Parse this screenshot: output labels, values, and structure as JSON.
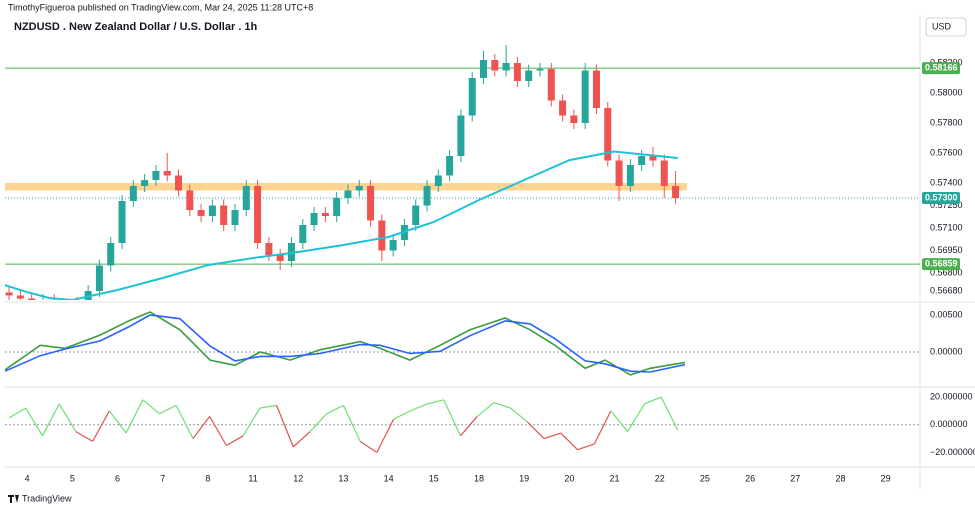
{
  "header": {
    "publisher": "TimothyFigueroa published on TradingView.com, Mar 24, 2025 11:28 UTC+8",
    "currency": "USD",
    "brand": "TradingView"
  },
  "chart_data": [
    {
      "type": "candlestick",
      "title": "NZDUSD . New Zealand Dollar / U.S. Dollar . 1h",
      "up_color": "#26a69a",
      "down_color": "#ef5350",
      "xlim": [
        -0.49,
        19.76
      ],
      "xticks": [
        {
          "value": 0,
          "label": "4"
        },
        {
          "value": 1,
          "label": "5"
        },
        {
          "value": 2,
          "label": "6"
        },
        {
          "value": 3,
          "label": "7"
        },
        {
          "value": 4,
          "label": "8"
        },
        {
          "value": 5,
          "label": "11"
        },
        {
          "value": 6,
          "label": "12"
        },
        {
          "value": 7,
          "label": "13"
        },
        {
          "value": 8,
          "label": "14"
        },
        {
          "value": 9,
          "label": "15"
        },
        {
          "value": 10,
          "label": "18"
        },
        {
          "value": 11,
          "label": "19"
        },
        {
          "value": 12,
          "label": "20"
        },
        {
          "value": 13,
          "label": "21"
        },
        {
          "value": 14,
          "label": "22"
        },
        {
          "value": 15,
          "label": "25"
        },
        {
          "value": 16,
          "label": "26"
        },
        {
          "value": 17,
          "label": "27"
        },
        {
          "value": 18,
          "label": "28"
        },
        {
          "value": 19,
          "label": "29"
        }
      ],
      "ylim": [
        0.5662,
        0.5852
      ],
      "yticks": [
        {
          "value": 0.582,
          "label": "0.58200"
        },
        {
          "value": 0.58,
          "label": "0.58000"
        },
        {
          "value": 0.578,
          "label": "0.57800"
        },
        {
          "value": 0.576,
          "label": "0.57600"
        },
        {
          "value": 0.574,
          "label": "0.57400"
        },
        {
          "value": 0.5725,
          "label": "0.57250"
        },
        {
          "value": 0.571,
          "label": "0.57100"
        },
        {
          "value": 0.5695,
          "label": "0.56950"
        },
        {
          "value": 0.568,
          "label": "0.56800"
        },
        {
          "value": 0.5668,
          "label": "0.56680"
        }
      ],
      "candles": {
        "x": [
          -0.4,
          -0.15,
          0.1,
          0.35,
          0.6,
          0.85,
          1.1,
          1.35,
          1.6,
          1.85,
          2.1,
          2.35,
          2.6,
          2.85,
          3.1,
          3.35,
          3.6,
          3.85,
          4.1,
          4.35,
          4.6,
          4.85,
          5.1,
          5.35,
          5.6,
          5.85,
          6.1,
          6.35,
          6.6,
          6.85,
          7.1,
          7.35,
          7.6,
          7.85,
          8.1,
          8.35,
          8.6,
          8.85,
          9.1,
          9.35,
          9.6,
          9.85,
          10.1,
          10.35,
          10.6,
          10.85,
          11.1,
          11.35,
          11.6,
          11.85,
          12.1,
          12.35,
          12.6,
          12.85,
          13.1,
          13.35,
          13.6,
          13.85,
          14.1,
          14.35
        ],
        "open": [
          0.5667,
          0.5665,
          0.5663,
          0.566,
          0.5662,
          0.5658,
          0.5655,
          0.566,
          0.5668,
          0.5685,
          0.57,
          0.5728,
          0.5738,
          0.5742,
          0.5748,
          0.5745,
          0.5735,
          0.5722,
          0.5718,
          0.5725,
          0.5712,
          0.5722,
          0.5738,
          0.57,
          0.5692,
          0.5688,
          0.57,
          0.5712,
          0.572,
          0.5718,
          0.573,
          0.5735,
          0.5738,
          0.5715,
          0.5695,
          0.5702,
          0.5712,
          0.5725,
          0.5738,
          0.5745,
          0.5758,
          0.5785,
          0.581,
          0.5822,
          0.5815,
          0.582,
          0.5808,
          0.5815,
          0.5816,
          0.5795,
          0.5785,
          0.578,
          0.5815,
          0.579,
          0.5755,
          0.5738,
          0.5752,
          0.5758,
          0.5755,
          0.5738
        ],
        "high": [
          0.5671,
          0.5669,
          0.5667,
          0.5666,
          0.5666,
          0.5662,
          0.5664,
          0.5672,
          0.5689,
          0.5704,
          0.5732,
          0.5742,
          0.5746,
          0.5752,
          0.576,
          0.5749,
          0.5739,
          0.5726,
          0.5729,
          0.5729,
          0.5726,
          0.5742,
          0.5742,
          0.5704,
          0.5696,
          0.5704,
          0.5716,
          0.5724,
          0.5724,
          0.5734,
          0.5739,
          0.5742,
          0.5742,
          0.5719,
          0.5706,
          0.5716,
          0.5729,
          0.5742,
          0.5749,
          0.5762,
          0.5789,
          0.5814,
          0.5828,
          0.5826,
          0.5832,
          0.5824,
          0.5819,
          0.582,
          0.582,
          0.5799,
          0.5789,
          0.582,
          0.5819,
          0.5794,
          0.5759,
          0.5756,
          0.5762,
          0.5764,
          0.5759,
          0.5748
        ],
        "low": [
          0.5661,
          0.5659,
          0.5656,
          0.5656,
          0.5654,
          0.5651,
          0.5651,
          0.5656,
          0.5664,
          0.5681,
          0.5696,
          0.5724,
          0.5734,
          0.5738,
          0.5741,
          0.5731,
          0.5718,
          0.5714,
          0.5714,
          0.5708,
          0.5708,
          0.5718,
          0.5696,
          0.5688,
          0.5682,
          0.5684,
          0.5696,
          0.5708,
          0.5714,
          0.5714,
          0.5726,
          0.5731,
          0.5711,
          0.5688,
          0.5691,
          0.5698,
          0.5708,
          0.5721,
          0.5734,
          0.5741,
          0.5754,
          0.5781,
          0.5806,
          0.5811,
          0.5811,
          0.5804,
          0.5804,
          0.5811,
          0.5791,
          0.5781,
          0.5776,
          0.5776,
          0.5786,
          0.5751,
          0.5728,
          0.5734,
          0.5748,
          0.5751,
          0.573,
          0.5726
        ],
        "close": [
          0.5665,
          0.5663,
          0.566,
          0.5662,
          0.5658,
          0.5655,
          0.566,
          0.5668,
          0.5685,
          0.57,
          0.5728,
          0.5738,
          0.5742,
          0.5748,
          0.5745,
          0.5735,
          0.5722,
          0.5718,
          0.5725,
          0.5712,
          0.5722,
          0.5738,
          0.57,
          0.5692,
          0.5688,
          0.57,
          0.5712,
          0.572,
          0.5718,
          0.573,
          0.5735,
          0.5738,
          0.5715,
          0.5695,
          0.5702,
          0.5712,
          0.5725,
          0.5738,
          0.5745,
          0.5758,
          0.5785,
          0.581,
          0.5822,
          0.5815,
          0.582,
          0.5808,
          0.5815,
          0.5816,
          0.5795,
          0.5785,
          0.578,
          0.5815,
          0.579,
          0.5755,
          0.5738,
          0.5752,
          0.5758,
          0.5755,
          0.5738,
          0.573
        ]
      },
      "series": [
        {
          "color": "#1cc3d4",
          "x": [
            -0.5,
            0,
            0.5,
            1,
            2,
            3,
            4,
            5,
            6,
            7,
            8,
            9,
            10,
            11,
            12,
            13,
            14.4
          ],
          "values": [
            0.5672,
            0.56673,
            0.56633,
            0.5662,
            0.56687,
            0.56767,
            0.56853,
            0.569,
            0.5694,
            0.56987,
            0.5704,
            0.5714,
            0.57287,
            0.5742,
            0.57553,
            0.5761,
            0.57567
          ]
        }
      ],
      "zone": [
        0.5735,
        0.574
      ],
      "zone_color": "#ffcc80",
      "levels": [
        {
          "value": 0.58166,
          "label": "0.58166",
          "color": "#4caf50",
          "style": "solid"
        },
        {
          "value": 0.56859,
          "label": "0.56859",
          "color": "#4caf50",
          "style": "solid"
        },
        {
          "value": 0.573,
          "label": "0.57300",
          "color": "#26a69a",
          "style": "dotted"
        }
      ]
    },
    {
      "type": "line",
      "ylim": [
        -0.00446,
        0.00635
      ],
      "yticks": [
        {
          "value": 0.005,
          "label": "0.00500"
        },
        {
          "value": 0,
          "label": "0.00000"
        }
      ],
      "series": [
        {
          "color": "#3a9d3f",
          "x": [
            -0.49,
            0.29,
            0.84,
            1.62,
            2.28,
            2.72,
            3.38,
            4.05,
            4.6,
            5.16,
            5.82,
            6.48,
            7.37,
            7.81,
            8.47,
            9.14,
            9.8,
            10.58,
            11.13,
            11.68,
            12.35,
            12.79,
            13.35,
            13.79,
            14.56
          ],
          "values": [
            -0.0024,
            0.0009,
            0.0005,
            0.0023,
            0.0043,
            0.0054,
            0.003,
            -0.0011,
            -0.0018,
            0,
            -0.0011,
            0.0003,
            0.0014,
            0.0005,
            -0.0011,
            0.0009,
            0.003,
            0.0046,
            0.003,
            0.0009,
            -0.0022,
            -0.0011,
            -0.0031,
            -0.0022,
            -0.0014
          ]
        },
        {
          "color": "#2962ff",
          "x": [
            -0.49,
            0.29,
            0.84,
            1.62,
            2.28,
            2.72,
            3.38,
            4.05,
            4.6,
            5.16,
            5.82,
            6.48,
            7.37,
            7.81,
            8.47,
            9.14,
            9.8,
            10.58,
            11.13,
            11.68,
            12.35,
            12.79,
            13.35,
            13.79,
            14.56
          ],
          "values": [
            -0.0026,
            -0.0005,
            0.0004,
            0.0015,
            0.0035,
            0.005,
            0.0045,
            0.0008,
            -0.0012,
            -0.0006,
            -0.0006,
            -0.0002,
            0.001,
            0.0009,
            -0.0002,
            0.0001,
            0.0022,
            0.0042,
            0.0038,
            0.0018,
            -0.0012,
            -0.0016,
            -0.0026,
            -0.0027,
            -0.0017
          ]
        }
      ]
    },
    {
      "type": "line",
      "ylim": [
        -29.1,
        25.1
      ],
      "yticks": [
        {
          "value": 20,
          "label": "20.000000"
        },
        {
          "value": 0,
          "label": "0.000000"
        },
        {
          "value": -20,
          "label": "−20.000000"
        }
      ],
      "series": [
        {
          "color": "#6fe06f",
          "color_neg": "#e0524f",
          "x": [
            -0.4,
            -0.03,
            0.34,
            0.71,
            1.08,
            1.45,
            1.82,
            2.19,
            2.56,
            2.93,
            3.3,
            3.67,
            4.04,
            4.41,
            4.78,
            5.15,
            5.52,
            5.89,
            6.26,
            6.63,
            7.0,
            7.37,
            7.74,
            8.11,
            8.48,
            8.85,
            9.22,
            9.59,
            9.96,
            10.33,
            10.7,
            11.07,
            11.44,
            11.81,
            12.18,
            12.55,
            12.92,
            13.29,
            13.66,
            14.03,
            14.4
          ],
          "values": [
            5,
            12,
            -8,
            15,
            -5,
            -12,
            10,
            -6,
            18,
            8,
            14,
            -10,
            6,
            -15,
            -8,
            12,
            14,
            -16,
            -5,
            8,
            14,
            -12,
            -20,
            4,
            10,
            15,
            18,
            -8,
            6,
            16,
            12,
            2,
            -10,
            -6,
            -18,
            -14,
            10,
            -5,
            15,
            20,
            -4
          ]
        }
      ]
    }
  ]
}
